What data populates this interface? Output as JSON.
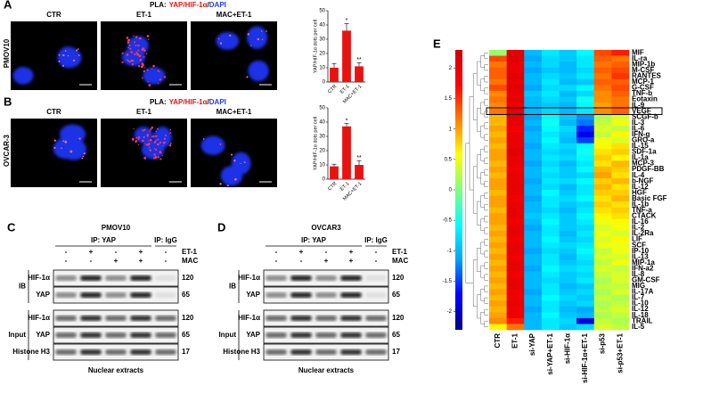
{
  "panel_a": {
    "label": "A",
    "title": [
      "PLA:",
      "YAP/HIF-1α",
      "/",
      "DAPI"
    ],
    "row_label": "PMOV10",
    "image_labels": [
      "CTR",
      "ET-1",
      "MAC+ET-1"
    ],
    "chart": {
      "type": "bar",
      "ylabel": "YAP/HIF-1α dots per cell",
      "categories": [
        "CTR",
        "ET-1",
        "MAC+ET-1"
      ],
      "values": [
        10,
        36,
        11
      ],
      "errors": [
        3,
        5,
        2.5
      ],
      "annotations": [
        null,
        "*",
        "**"
      ],
      "color": "#e8130f",
      "ylim": [
        0,
        50
      ],
      "yticks": [
        0,
        10,
        20,
        30,
        40,
        50
      ]
    }
  },
  "panel_b": {
    "label": "B",
    "title": [
      "PLA:",
      "YAP/HIF-1α",
      "/",
      "DAPI"
    ],
    "row_label": "OVCAR-3",
    "image_labels": [
      "CTR",
      "ET-1",
      "MAC+ET-1"
    ],
    "chart": {
      "type": "bar",
      "ylabel": "YAP/HIF-1α dots per cell",
      "categories": [
        "CTR",
        "ET-1",
        "MAC+ET-1"
      ],
      "values": [
        9,
        37,
        10
      ],
      "errors": [
        1.5,
        2,
        3
      ],
      "annotations": [
        null,
        "*",
        "**"
      ],
      "color": "#e8130f",
      "ylim": [
        0,
        50
      ],
      "yticks": [
        0,
        10,
        20,
        30,
        40,
        50
      ]
    }
  },
  "panel_c": {
    "label": "C",
    "title": "PMOV10",
    "ip_groups": [
      "IP: YAP",
      "IP: IgG"
    ],
    "treatments": [
      {
        "name": "ET-1",
        "signs": [
          "-",
          "+",
          "-",
          "+",
          "-"
        ]
      },
      {
        "name": "MAC",
        "signs": [
          "-",
          "-",
          "+",
          "+",
          "-"
        ]
      }
    ],
    "sections": [
      {
        "name": "IB",
        "blots": [
          {
            "name": "HIF-1α",
            "mw": 120
          },
          {
            "name": "YAP",
            "mw": 65
          }
        ]
      },
      {
        "name": "Input",
        "blots": [
          {
            "name": "HIF-1α",
            "mw": 120
          },
          {
            "name": "YAP",
            "mw": 65
          },
          {
            "name": "Histone H3",
            "mw": 17
          }
        ]
      }
    ],
    "footer": "Nuclear extracts"
  },
  "panel_d": {
    "label": "D",
    "title": "OVCAR3",
    "ip_groups": [
      "IP: YAP",
      "IP: IgG"
    ],
    "treatments": [
      {
        "name": "ET-1",
        "signs": [
          "-",
          "+",
          "-",
          "+",
          "-"
        ]
      },
      {
        "name": "MAC",
        "signs": [
          "-",
          "-",
          "+",
          "+",
          "-"
        ]
      }
    ],
    "sections": [
      {
        "name": "IB",
        "blots": [
          {
            "name": "HIF-1α",
            "mw": 120
          },
          {
            "name": "YAP",
            "mw": 65
          }
        ]
      },
      {
        "name": "Input",
        "blots": [
          {
            "name": "HIF-1α",
            "mw": 120
          },
          {
            "name": "YAP",
            "mw": 65
          },
          {
            "name": "Histone H3",
            "mw": 17
          }
        ]
      }
    ],
    "footer": "Nuclear extracts"
  },
  "panel_e": {
    "label": "E",
    "type": "heatmap",
    "columns": [
      "CTR",
      "ET-1",
      "si-YAP",
      "si-YAP+ET-1",
      "si-HIF-1α",
      "si-HIF-1α+ET-1",
      "si-p53",
      "si-p53+ET-1"
    ],
    "rows": [
      "MIF",
      "IL-ra",
      "MIP-1b",
      "M-CSF",
      "RANTES",
      "MCP-1",
      "G-CSF",
      "TNF-b",
      "Eotaxin",
      "IL-9",
      "VEGF",
      "SCGF-b",
      "IL-3",
      "IL-6",
      "IFN-g",
      "GRO-a",
      "IL-15",
      "SDF-1a",
      "IL-1a",
      "MCP-3",
      "PDGF-BB",
      "IL-4",
      "b-NGF",
      "IL-12",
      "HGF",
      "Basic FGF",
      "IL-1b",
      "TNF-a",
      "CTACK",
      "IL-16",
      "IL-2",
      "IL-2Ra",
      "LIF",
      "SCF",
      "IP-10",
      "IL-13",
      "MIP-1a",
      "IFN-a2",
      "IL-8",
      "GM-CSF",
      "MIG",
      "IL-17A",
      "IL-7",
      "IL-10",
      "IL-12",
      "IL-18",
      "TRAIL",
      "IL-5"
    ],
    "values": [
      [
        0.1,
        2.1,
        -1.0,
        -0.7,
        -0.9,
        -0.6,
        1.4,
        1.6
      ],
      [
        1.4,
        2.1,
        -1.1,
        -0.8,
        -0.9,
        -0.7,
        1.3,
        1.2
      ],
      [
        1.2,
        2.0,
        -1.0,
        -0.8,
        -1.0,
        -0.7,
        1.2,
        1.3
      ],
      [
        1.3,
        2.0,
        -1.1,
        -0.9,
        -1.0,
        -0.8,
        1.3,
        1.4
      ],
      [
        1.3,
        2.1,
        -1.0,
        -0.8,
        -0.9,
        -0.7,
        1.2,
        1.5
      ],
      [
        1.2,
        2.0,
        -1.0,
        -0.7,
        -1.0,
        -0.9,
        1.3,
        1.3
      ],
      [
        1.4,
        2.1,
        -1.1,
        -0.8,
        -0.8,
        -0.6,
        1.2,
        1.4
      ],
      [
        1.1,
        2.0,
        -0.9,
        -0.7,
        -1.0,
        -0.8,
        1.1,
        1.3
      ],
      [
        1.2,
        2.0,
        -1.0,
        -0.8,
        -0.9,
        -0.5,
        1.1,
        1.2
      ],
      [
        1.1,
        1.9,
        -1.0,
        -0.9,
        -1.0,
        -0.6,
        1.0,
        1.2
      ],
      [
        1.2,
        2.0,
        -1.0,
        -0.8,
        -1.0,
        -0.7,
        1.1,
        1.3
      ],
      [
        0.9,
        2.0,
        -1.1,
        -0.6,
        -0.9,
        -1.2,
        0.2,
        0.4
      ],
      [
        0.9,
        2.0,
        -1.0,
        -0.5,
        -1.0,
        -1.3,
        0.3,
        0.5
      ],
      [
        1.0,
        1.9,
        -1.1,
        -0.6,
        -0.8,
        -1.6,
        0.4,
        0.3
      ],
      [
        0.9,
        2.0,
        -1.0,
        -0.7,
        -0.9,
        -1.8,
        0.3,
        0.6
      ],
      [
        1.0,
        2.0,
        -1.0,
        -0.6,
        -1.0,
        -1.5,
        0.5,
        0.4
      ],
      [
        0.9,
        2.0,
        -1.1,
        -0.7,
        -0.8,
        -0.6,
        0.6,
        0.7
      ],
      [
        1.0,
        2.1,
        -1.0,
        -0.8,
        -0.9,
        -0.5,
        0.7,
        0.8
      ],
      [
        1.0,
        2.0,
        -1.0,
        -0.7,
        -0.8,
        -0.6,
        0.8,
        0.6
      ],
      [
        0.9,
        2.0,
        -1.1,
        -0.8,
        -1.0,
        -0.7,
        0.7,
        0.9
      ],
      [
        1.0,
        1.9,
        -1.0,
        -0.7,
        -0.9,
        -0.6,
        0.9,
        0.8
      ],
      [
        0.9,
        2.0,
        -1.0,
        -0.8,
        -0.9,
        -0.8,
        1.0,
        0.7
      ],
      [
        1.0,
        2.0,
        -1.1,
        -0.7,
        -0.8,
        -0.6,
        0.8,
        0.9
      ],
      [
        1.0,
        2.0,
        -1.0,
        -0.8,
        -1.0,
        -0.7,
        0.9,
        0.7
      ],
      [
        0.9,
        2.0,
        -1.0,
        -0.6,
        -0.9,
        -0.7,
        0.8,
        0.8
      ],
      [
        1.0,
        1.9,
        -1.1,
        -0.7,
        -0.8,
        -0.6,
        0.7,
        0.9
      ],
      [
        1.0,
        2.0,
        -1.0,
        -0.7,
        -0.9,
        -0.8,
        0.8,
        0.7
      ],
      [
        0.9,
        2.0,
        -1.0,
        -0.8,
        -1.0,
        -0.7,
        0.7,
        0.8
      ],
      [
        1.0,
        2.0,
        -0.9,
        -0.7,
        -0.9,
        -0.6,
        0.6,
        0.7
      ],
      [
        1.0,
        1.9,
        -1.0,
        -0.6,
        -0.9,
        -0.7,
        0.5,
        0.6
      ],
      [
        0.9,
        2.0,
        -1.1,
        -0.7,
        -0.9,
        -0.8,
        0.4,
        0.5
      ],
      [
        1.0,
        2.0,
        -1.0,
        -0.7,
        -1.0,
        -0.7,
        0.5,
        0.4
      ],
      [
        0.9,
        1.9,
        -1.0,
        -0.6,
        -0.9,
        -0.8,
        0.4,
        0.6
      ],
      [
        1.0,
        2.0,
        -1.0,
        -0.7,
        -0.8,
        -0.7,
        0.5,
        0.5
      ],
      [
        0.9,
        2.0,
        -1.1,
        -0.8,
        -0.9,
        -0.6,
        0.3,
        0.5
      ],
      [
        1.0,
        1.9,
        -1.0,
        -0.7,
        -1.0,
        -0.7,
        0.4,
        0.4
      ],
      [
        0.9,
        2.0,
        -1.0,
        -0.7,
        -0.9,
        -0.8,
        0.3,
        0.5
      ],
      [
        1.0,
        2.0,
        -1.1,
        -0.6,
        -0.8,
        -0.7,
        0.4,
        0.3
      ],
      [
        0.9,
        1.9,
        -1.0,
        -0.7,
        -0.9,
        -0.8,
        0.3,
        0.4
      ],
      [
        1.0,
        2.0,
        -1.0,
        -0.8,
        -0.9,
        -0.7,
        0.2,
        0.4
      ],
      [
        0.9,
        2.0,
        -1.0,
        -0.7,
        -1.0,
        -0.9,
        0.3,
        0.3
      ],
      [
        1.0,
        1.9,
        -1.1,
        -0.7,
        -0.9,
        -0.8,
        0.2,
        0.4
      ],
      [
        0.9,
        1.9,
        -1.0,
        -0.6,
        -0.8,
        -0.9,
        0.3,
        0.2
      ],
      [
        1.0,
        2.0,
        -1.0,
        -0.7,
        -0.9,
        -0.8,
        0.2,
        0.3
      ],
      [
        0.9,
        1.9,
        -1.1,
        -0.7,
        -1.0,
        -1.1,
        0.3,
        0.4
      ],
      [
        1.0,
        1.9,
        -1.0,
        -0.6,
        -0.9,
        -1.0,
        0.2,
        0.3
      ],
      [
        1.1,
        1.6,
        -1.0,
        -0.7,
        -0.8,
        -1.9,
        0.3,
        0.2
      ],
      [
        0.6,
        1.2,
        -1.0,
        -0.7,
        -0.9,
        -0.8,
        0.4,
        0.3
      ]
    ],
    "zlim": [
      -2.3,
      2.3
    ],
    "colorbar_ticks": [
      2,
      1.5,
      1,
      0.5,
      0,
      -0.5,
      -1,
      -1.5,
      -2
    ],
    "colormap": [
      "#000080",
      "#0000ff",
      "#00a0ff",
      "#00ffff",
      "#80ff80",
      "#ffff00",
      "#ff8000",
      "#ff0000",
      "#d00000"
    ],
    "highlighted_row": "VEGF"
  }
}
